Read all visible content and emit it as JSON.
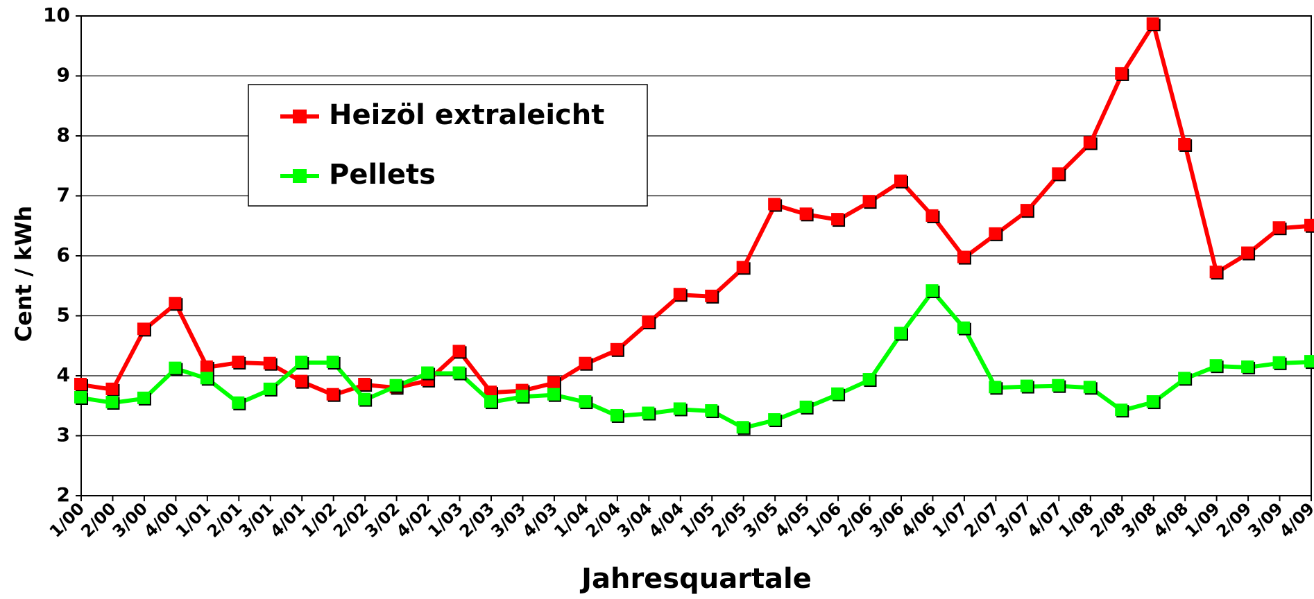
{
  "chart_data": {
    "type": "line",
    "x_label": "Jahresquartale",
    "y_label": "Cent / kWh",
    "categories": [
      "1/00",
      "2/00",
      "3/00",
      "4/00",
      "1/01",
      "2/01",
      "3/01",
      "4/01",
      "1/02",
      "2/02",
      "3/02",
      "4/02",
      "1/03",
      "2/03",
      "3/03",
      "4/03",
      "1/04",
      "2/04",
      "3/04",
      "4/04",
      "1/05",
      "2/05",
      "3/05",
      "4/05",
      "1/06",
      "2/06",
      "3/06",
      "4/06",
      "1/07",
      "2/07",
      "3/07",
      "4/07",
      "1/08",
      "2/08",
      "3/08",
      "4/08",
      "1/09",
      "2/09",
      "3/09",
      "4/09"
    ],
    "series": [
      {
        "name": "Heizöl extraleicht",
        "color": "#ff0000",
        "values": [
          3.85,
          3.77,
          4.77,
          5.2,
          4.14,
          4.22,
          4.2,
          3.9,
          3.68,
          3.85,
          3.8,
          3.92,
          4.4,
          3.72,
          3.75,
          3.88,
          4.2,
          4.43,
          4.89,
          5.35,
          5.32,
          5.8,
          6.85,
          6.69,
          6.6,
          6.9,
          7.24,
          6.66,
          5.97,
          6.36,
          6.75,
          7.36,
          7.88,
          9.03,
          9.86,
          7.85,
          5.72,
          6.04,
          6.46,
          6.5
        ]
      },
      {
        "name": "Pellets",
        "color": "#00ff00",
        "values": [
          3.63,
          3.55,
          3.62,
          4.12,
          3.95,
          3.54,
          3.77,
          4.22,
          4.22,
          3.6,
          3.83,
          4.04,
          4.04,
          3.56,
          3.65,
          3.68,
          3.56,
          3.33,
          3.37,
          3.44,
          3.41,
          3.13,
          3.26,
          3.47,
          3.69,
          3.93,
          4.7,
          5.41,
          4.79,
          3.8,
          3.82,
          3.83,
          3.8,
          3.42,
          3.56,
          3.95,
          4.16,
          4.14,
          4.21,
          4.23
        ]
      }
    ],
    "ylim": [
      2,
      10
    ],
    "yticks": [
      2,
      3,
      4,
      5,
      6,
      7,
      8,
      9,
      10
    ],
    "grid": true
  }
}
